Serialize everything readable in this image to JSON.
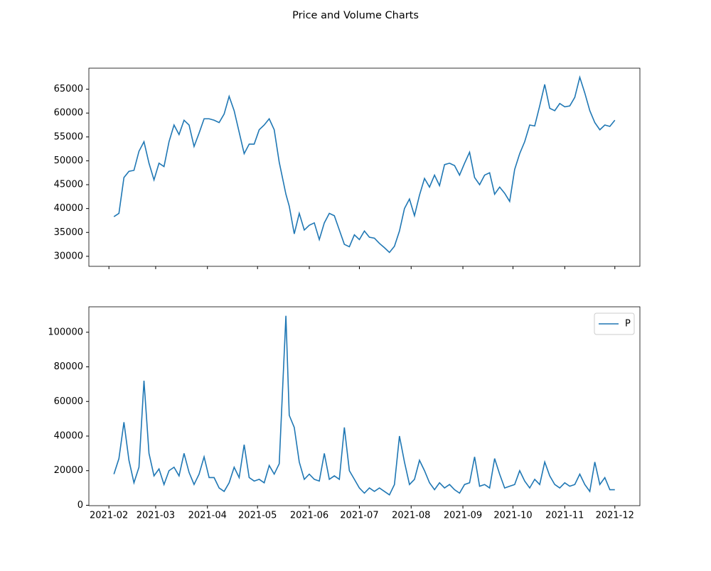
{
  "title": "Price and Volume Charts",
  "chart_data": [
    {
      "type": "line",
      "x": [
        "2021-02-04",
        "2021-02-07",
        "2021-02-10",
        "2021-02-13",
        "2021-02-16",
        "2021-02-19",
        "2021-02-22",
        "2021-02-25",
        "2021-02-28",
        "2021-03-03",
        "2021-03-06",
        "2021-03-09",
        "2021-03-12",
        "2021-03-15",
        "2021-03-18",
        "2021-03-21",
        "2021-03-24",
        "2021-03-27",
        "2021-03-30",
        "2021-04-02",
        "2021-04-05",
        "2021-04-08",
        "2021-04-11",
        "2021-04-14",
        "2021-04-17",
        "2021-04-20",
        "2021-04-23",
        "2021-04-26",
        "2021-04-29",
        "2021-05-02",
        "2021-05-05",
        "2021-05-08",
        "2021-05-11",
        "2021-05-14",
        "2021-05-18",
        "2021-05-20",
        "2021-05-23",
        "2021-05-26",
        "2021-05-29",
        "2021-06-01",
        "2021-06-04",
        "2021-06-07",
        "2021-06-10",
        "2021-06-13",
        "2021-06-16",
        "2021-06-19",
        "2021-06-22",
        "2021-06-25",
        "2021-06-28",
        "2021-07-01",
        "2021-07-04",
        "2021-07-07",
        "2021-07-10",
        "2021-07-13",
        "2021-07-16",
        "2021-07-19",
        "2021-07-22",
        "2021-07-25",
        "2021-07-28",
        "2021-07-31",
        "2021-08-03",
        "2021-08-06",
        "2021-08-09",
        "2021-08-12",
        "2021-08-15",
        "2021-08-18",
        "2021-08-21",
        "2021-08-24",
        "2021-08-27",
        "2021-08-30",
        "2021-09-02",
        "2021-09-05",
        "2021-09-08",
        "2021-09-11",
        "2021-09-14",
        "2021-09-17",
        "2021-09-20",
        "2021-09-23",
        "2021-09-26",
        "2021-09-29",
        "2021-10-02",
        "2021-10-05",
        "2021-10-08",
        "2021-10-11",
        "2021-10-14",
        "2021-10-17",
        "2021-10-20",
        "2021-10-23",
        "2021-10-26",
        "2021-10-29",
        "2021-11-01",
        "2021-11-04",
        "2021-11-07",
        "2021-11-10",
        "2021-11-13",
        "2021-11-16",
        "2021-11-19",
        "2021-11-22",
        "2021-11-25",
        "2021-11-28",
        "2021-12-01"
      ],
      "series": [
        {
          "color": "#1f77b4",
          "values": [
            38300,
            39000,
            46500,
            47800,
            48000,
            52000,
            54000,
            49500,
            46000,
            49500,
            48800,
            54000,
            57500,
            55500,
            58500,
            57500,
            53000,
            55800,
            58800,
            58800,
            58500,
            58000,
            59800,
            63500,
            60500,
            56000,
            51500,
            53500,
            53500,
            56500,
            57500,
            58800,
            56500,
            49700,
            43000,
            40500,
            34700,
            39000,
            35500,
            36500,
            37000,
            33500,
            37000,
            39000,
            38500,
            35500,
            32500,
            32000,
            34500,
            33500,
            35300,
            34000,
            33800,
            32700,
            31800,
            30800,
            32100,
            35300,
            40000,
            42000,
            38500,
            42800,
            46300,
            44500,
            47000,
            44800,
            49200,
            49500,
            49000,
            47000,
            49500,
            51800,
            46500,
            45000,
            47000,
            47500,
            43000,
            44500,
            43200,
            41500,
            48200,
            51500,
            54000,
            57500,
            57300,
            61500,
            66000,
            61000,
            60500,
            62000,
            61300,
            61500,
            63300,
            67500,
            64200,
            60500,
            58000,
            56500,
            57500,
            57200,
            58500
          ]
        }
      ],
      "xlim": [
        "2021-01-20",
        "2021-12-16"
      ],
      "xticks": [
        "2021-02-01",
        "2021-03-01",
        "2021-04-01",
        "2021-05-01",
        "2021-06-01",
        "2021-07-01",
        "2021-08-01",
        "2021-09-01",
        "2021-10-01",
        "2021-11-01",
        "2021-12-01"
      ],
      "ylim": [
        27900,
        69400
      ],
      "yticks": [
        30000,
        35000,
        40000,
        45000,
        50000,
        55000,
        60000,
        65000
      ]
    },
    {
      "type": "line",
      "x": [
        "2021-02-04",
        "2021-02-07",
        "2021-02-10",
        "2021-02-13",
        "2021-02-16",
        "2021-02-19",
        "2021-02-22",
        "2021-02-25",
        "2021-02-28",
        "2021-03-03",
        "2021-03-06",
        "2021-03-09",
        "2021-03-12",
        "2021-03-15",
        "2021-03-18",
        "2021-03-21",
        "2021-03-24",
        "2021-03-27",
        "2021-03-30",
        "2021-04-02",
        "2021-04-05",
        "2021-04-08",
        "2021-04-11",
        "2021-04-14",
        "2021-04-17",
        "2021-04-20",
        "2021-04-23",
        "2021-04-26",
        "2021-04-29",
        "2021-05-02",
        "2021-05-05",
        "2021-05-08",
        "2021-05-11",
        "2021-05-14",
        "2021-05-18",
        "2021-05-20",
        "2021-05-23",
        "2021-05-26",
        "2021-05-29",
        "2021-06-01",
        "2021-06-04",
        "2021-06-07",
        "2021-06-10",
        "2021-06-13",
        "2021-06-16",
        "2021-06-19",
        "2021-06-22",
        "2021-06-25",
        "2021-06-28",
        "2021-07-01",
        "2021-07-04",
        "2021-07-07",
        "2021-07-10",
        "2021-07-13",
        "2021-07-16",
        "2021-07-19",
        "2021-07-22",
        "2021-07-25",
        "2021-07-28",
        "2021-07-31",
        "2021-08-03",
        "2021-08-06",
        "2021-08-09",
        "2021-08-12",
        "2021-08-15",
        "2021-08-18",
        "2021-08-21",
        "2021-08-24",
        "2021-08-27",
        "2021-08-30",
        "2021-09-02",
        "2021-09-05",
        "2021-09-08",
        "2021-09-11",
        "2021-09-14",
        "2021-09-17",
        "2021-09-20",
        "2021-09-23",
        "2021-09-26",
        "2021-09-29",
        "2021-10-02",
        "2021-10-05",
        "2021-10-08",
        "2021-10-11",
        "2021-10-14",
        "2021-10-17",
        "2021-10-20",
        "2021-10-23",
        "2021-10-26",
        "2021-10-29",
        "2021-11-01",
        "2021-11-04",
        "2021-11-07",
        "2021-11-10",
        "2021-11-13",
        "2021-11-16",
        "2021-11-19",
        "2021-11-22",
        "2021-11-25",
        "2021-11-28",
        "2021-12-01"
      ],
      "series": [
        {
          "name": "P",
          "color": "#1f77b4",
          "values": [
            18000,
            27000,
            48000,
            26000,
            13000,
            22000,
            72000,
            30000,
            17000,
            21000,
            12000,
            20000,
            22000,
            17000,
            30000,
            19000,
            12000,
            18000,
            28000,
            16000,
            16000,
            10000,
            8000,
            13000,
            22000,
            16000,
            35000,
            16000,
            14000,
            15000,
            13000,
            23000,
            18000,
            24000,
            109500,
            52000,
            45000,
            25000,
            15000,
            18000,
            15000,
            14000,
            30000,
            15000,
            17000,
            15000,
            45000,
            20000,
            15000,
            10000,
            7000,
            10000,
            8000,
            10000,
            8000,
            6000,
            12000,
            40000,
            25000,
            12000,
            15000,
            26000,
            20000,
            13000,
            9000,
            13000,
            10000,
            12000,
            9000,
            7000,
            12000,
            13000,
            28000,
            11000,
            12000,
            10000,
            27000,
            18000,
            10000,
            11000,
            12000,
            20000,
            14000,
            10000,
            15000,
            12000,
            25000,
            17000,
            12000,
            10000,
            13000,
            11000,
            12000,
            18000,
            12000,
            8000,
            25000,
            12000,
            16000,
            9000,
            9000
          ]
        }
      ],
      "xlim": [
        "2021-01-20",
        "2021-12-16"
      ],
      "xticks": [
        {
          "value": "2021-02-01",
          "label": "2021-02"
        },
        {
          "value": "2021-03-01",
          "label": "2021-03"
        },
        {
          "value": "2021-04-01",
          "label": "2021-04"
        },
        {
          "value": "2021-05-01",
          "label": "2021-05"
        },
        {
          "value": "2021-06-01",
          "label": "2021-06"
        },
        {
          "value": "2021-07-01",
          "label": "2021-07"
        },
        {
          "value": "2021-08-01",
          "label": "2021-08"
        },
        {
          "value": "2021-09-01",
          "label": "2021-09"
        },
        {
          "value": "2021-10-01",
          "label": "2021-10"
        },
        {
          "value": "2021-11-01",
          "label": "2021-11"
        },
        {
          "value": "2021-12-01",
          "label": "2021-12"
        }
      ],
      "ylim": [
        -225,
        114700
      ],
      "yticks": [
        0,
        20000,
        40000,
        60000,
        80000,
        100000
      ],
      "legend": "upper right"
    }
  ]
}
